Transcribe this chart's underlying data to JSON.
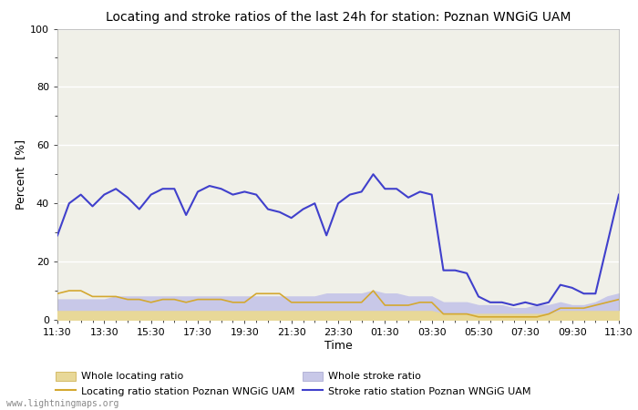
{
  "title": "Locating and stroke ratios of the last 24h for station: Poznan WNGiG UAM",
  "ylabel": "Percent  [%]",
  "xlabel": "Time",
  "ylim": [
    0,
    100
  ],
  "yticks": [
    0,
    20,
    40,
    60,
    80,
    100
  ],
  "ytick_minor": [
    10,
    30,
    50,
    70,
    90
  ],
  "xtick_labels": [
    "11:30",
    "13:30",
    "15:30",
    "17:30",
    "19:30",
    "21:30",
    "23:30",
    "01:30",
    "03:30",
    "05:30",
    "07:30",
    "09:30",
    "11:30"
  ],
  "watermark": "www.lightningmaps.org",
  "bg_color": "#ffffff",
  "plot_bg_color": "#f0f0e8",
  "grid_color": "#ffffff",
  "locating_line_color": "#d4a830",
  "stroke_line_color": "#4040cc",
  "locating_fill_color": "#e8d898",
  "stroke_fill_color": "#c8c8e8",
  "title_fontsize": 10,
  "tick_fontsize": 8,
  "legend_fontsize": 8,
  "x_values": [
    0,
    0.5,
    1.0,
    1.5,
    2.0,
    2.5,
    3.0,
    3.5,
    4.0,
    4.5,
    5.0,
    5.5,
    6.0,
    6.5,
    7.0,
    7.5,
    8.0,
    8.5,
    9.0,
    9.5,
    10.0,
    10.5,
    11.0,
    11.5,
    12.0,
    12.5,
    13.0,
    13.5,
    14.0,
    14.5,
    15.0,
    15.5,
    16.0,
    16.5,
    17.0,
    17.5,
    18.0,
    18.5,
    19.0,
    19.5,
    20.0,
    20.5,
    21.0,
    21.5,
    22.0,
    22.5,
    23.0,
    23.5,
    24.0
  ],
  "stroke_ratio": [
    29,
    40,
    43,
    39,
    43,
    45,
    42,
    38,
    43,
    45,
    45,
    36,
    44,
    46,
    45,
    43,
    44,
    43,
    38,
    37,
    35,
    38,
    40,
    29,
    40,
    43,
    44,
    50,
    45,
    45,
    42,
    44,
    43,
    17,
    17,
    16,
    8,
    6,
    6,
    5,
    6,
    5,
    6,
    12,
    11,
    9,
    9,
    26,
    43
  ],
  "locating_ratio": [
    9,
    10,
    10,
    8,
    8,
    8,
    7,
    7,
    6,
    7,
    7,
    6,
    7,
    7,
    7,
    6,
    6,
    9,
    9,
    9,
    6,
    6,
    6,
    6,
    6,
    6,
    6,
    10,
    5,
    5,
    5,
    6,
    6,
    2,
    2,
    2,
    1,
    1,
    1,
    1,
    1,
    1,
    2,
    4,
    4,
    4,
    5,
    6,
    7
  ],
  "whole_stroke_fill": [
    7,
    7,
    7,
    7,
    7,
    8,
    8,
    8,
    8,
    8,
    8,
    8,
    8,
    8,
    8,
    8,
    8,
    8,
    8,
    8,
    8,
    8,
    8,
    9,
    9,
    9,
    9,
    10,
    9,
    9,
    8,
    8,
    8,
    6,
    6,
    6,
    5,
    5,
    5,
    4,
    4,
    5,
    5,
    6,
    5,
    5,
    6,
    8,
    9
  ],
  "whole_locating_fill": [
    3,
    3,
    3,
    3,
    3,
    3,
    3,
    3,
    3,
    3,
    3,
    3,
    3,
    3,
    3,
    3,
    3,
    3,
    3,
    3,
    3,
    3,
    3,
    3,
    3,
    3,
    3,
    3,
    3,
    3,
    3,
    3,
    3,
    2,
    2,
    2,
    2,
    2,
    2,
    2,
    2,
    2,
    2,
    3,
    3,
    3,
    3,
    3,
    3
  ]
}
